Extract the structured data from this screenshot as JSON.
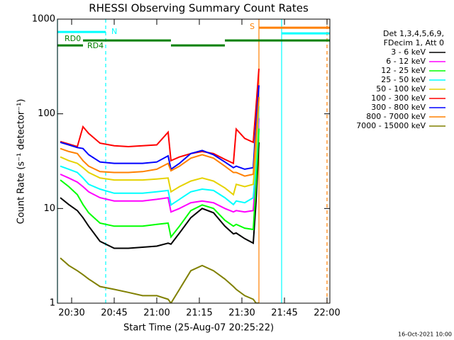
{
  "chart_data": {
    "type": "line",
    "title": "RHESSI Observing Summary Count Rates",
    "xlabel": "Start Time (25-Aug-07 20:25:22)",
    "ylabel": "Count Rate (s⁻¹ detector⁻¹)",
    "footer": "16-Oct-2021 10:00",
    "legend_header": [
      "Det 1,3,4,5,6,9,",
      "FDecim 1, Att 0"
    ],
    "legend": "right",
    "log_y": true,
    "xlim": [
      "20:25",
      "22:01"
    ],
    "xticks": [
      "20:30",
      "20:45",
      "21:00",
      "21:15",
      "21:30",
      "21:45",
      "22:00"
    ],
    "ylim": [
      1,
      1000
    ],
    "yticks": [
      1,
      10,
      100,
      1000
    ],
    "x": [
      "20:26",
      "20:29",
      "20:32",
      "20:34",
      "20:36",
      "20:40",
      "20:45",
      "20:50",
      "20:55",
      "21:00",
      "21:04",
      "21:05",
      "21:08",
      "21:12",
      "21:16",
      "21:20",
      "21:24",
      "21:27",
      "21:28",
      "21:31",
      "21:34",
      "21:35",
      "21:36"
    ],
    "series": [
      {
        "name": "3 - 6 keV",
        "color": "#000000",
        "values": [
          13,
          11,
          9.5,
          8,
          6.5,
          4.5,
          3.8,
          3.8,
          3.9,
          4,
          4.3,
          4.2,
          5.5,
          8,
          10,
          9,
          6.5,
          5.4,
          5.5,
          4.8,
          4.3,
          12,
          50
        ]
      },
      {
        "name": "6 - 12 keV",
        "color": "#ff00ff",
        "values": [
          23,
          21,
          19,
          17,
          15,
          13,
          12,
          12,
          12,
          12.5,
          13,
          9.2,
          10,
          11.5,
          12,
          11.5,
          10,
          9.2,
          9.5,
          9.2,
          9.5,
          25,
          90
        ]
      },
      {
        "name": "12 - 25 keV",
        "color": "#00ff00",
        "values": [
          20,
          17,
          14,
          11,
          9,
          7,
          6.5,
          6.5,
          6.5,
          6.8,
          7,
          5,
          6.5,
          9.5,
          10.9,
          10,
          7.5,
          6.5,
          6.8,
          6.2,
          6,
          18,
          70
        ]
      },
      {
        "name": "25 - 50 keV",
        "color": "#00ffff",
        "values": [
          28,
          26,
          24,
          21,
          18,
          16,
          14.5,
          14.5,
          14.5,
          15,
          15.5,
          10.9,
          12.5,
          15,
          16,
          15.5,
          13,
          11,
          12,
          11.5,
          13,
          30,
          120
        ]
      },
      {
        "name": "50 - 100 keV",
        "color": "#e6d200",
        "values": [
          35,
          32,
          30,
          27,
          24,
          21,
          20,
          20,
          20,
          20.5,
          21,
          15,
          17,
          19.5,
          21,
          19.5,
          16.5,
          14,
          18,
          17,
          18,
          40,
          150
        ]
      },
      {
        "name": "100 - 300 keV",
        "color": "#ff0000",
        "values": [
          51,
          48,
          45,
          73,
          62,
          49,
          46,
          45,
          46,
          47,
          64,
          32,
          35,
          38,
          40,
          38,
          33,
          30,
          69,
          55,
          50,
          120,
          300
        ]
      },
      {
        "name": "300 - 800 keV",
        "color": "#0000ff",
        "values": [
          50,
          47,
          44,
          43,
          37,
          31,
          30,
          30,
          30,
          31,
          36,
          26,
          30,
          38,
          41,
          37,
          31,
          27,
          28,
          26,
          27,
          80,
          200
        ]
      },
      {
        "name": "800 - 7000 keV",
        "color": "#ff8000",
        "values": [
          43,
          40,
          38,
          32,
          28,
          24.5,
          24,
          24,
          24.5,
          26,
          30,
          25,
          28,
          34,
          37,
          34,
          28,
          24,
          24,
          22,
          23,
          60,
          150
        ]
      },
      {
        "name": "7000 - 15000 keV",
        "color": "#808000",
        "values": [
          3,
          2.5,
          2.2,
          2,
          1.8,
          1.5,
          1.4,
          1.3,
          1.2,
          1.2,
          1.1,
          1,
          1.4,
          2.2,
          2.5,
          2.2,
          1.8,
          1.5,
          1.4,
          1.2,
          1.1,
          1,
          1
        ]
      }
    ],
    "flags": [
      {
        "label": "N",
        "color": "#00ffff",
        "segments": [
          {
            "start": "20:25",
            "end": "20:42",
            "y": 732
          },
          {
            "start": "21:44",
            "end": "22:01",
            "y": 707
          }
        ]
      },
      {
        "label": "RD0",
        "color": "#008000",
        "segments": [
          {
            "start": "20:25",
            "end": "20:34",
            "y": 527
          },
          {
            "start": "21:05",
            "end": "21:24",
            "y": 527
          }
        ]
      },
      {
        "label": "RD4",
        "color": "#008000",
        "segments": [
          {
            "start": "20:34",
            "end": "21:05",
            "y": 595
          },
          {
            "start": "21:24",
            "end": "22:01",
            "y": 595
          }
        ]
      },
      {
        "label": "S",
        "color": "#ff8000",
        "segments": [
          {
            "start": "21:36",
            "end": "22:01",
            "y": 811
          }
        ]
      }
    ],
    "vlines": [
      {
        "x": "20:25",
        "color": "#00ffff",
        "dashed": false
      },
      {
        "x": "20:42",
        "color": "#00ffff",
        "dashed": true
      },
      {
        "x": "21:36",
        "color": "#ff8000",
        "dashed": false
      },
      {
        "x": "21:44",
        "color": "#00ffff",
        "dashed": false
      },
      {
        "x": "22:00",
        "color": "#ff8000",
        "dashed": true
      }
    ]
  }
}
